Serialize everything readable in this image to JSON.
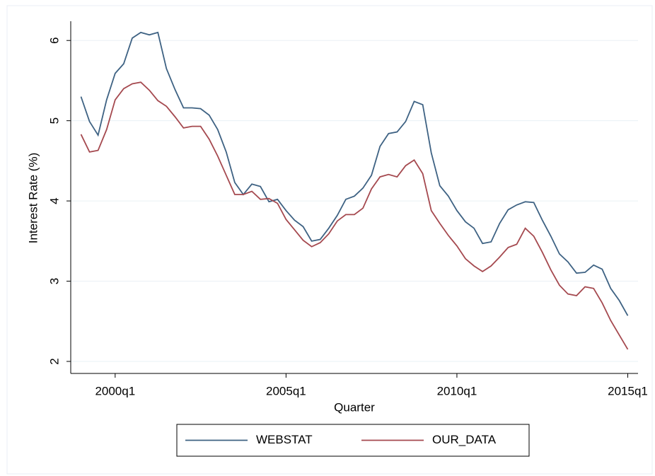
{
  "chart_data": {
    "type": "line",
    "x_label": "Quarter",
    "y_label": "Interest Rate (%)",
    "x": [
      156,
      157,
      158,
      159,
      160,
      161,
      162,
      163,
      164,
      165,
      166,
      167,
      168,
      169,
      170,
      171,
      172,
      173,
      174,
      175,
      176,
      177,
      178,
      179,
      180,
      181,
      182,
      183,
      184,
      185,
      186,
      187,
      188,
      189,
      190,
      191,
      192,
      193,
      194,
      195,
      196,
      197,
      198,
      199,
      200,
      201,
      202,
      203,
      204,
      205,
      206,
      207,
      208,
      209,
      210,
      211,
      212,
      213,
      214,
      215,
      216,
      217,
      218,
      219,
      220
    ],
    "series": [
      {
        "name": "WEBSTAT",
        "color": "#3e6283",
        "values": [
          5.3,
          4.99,
          4.82,
          5.26,
          5.59,
          5.71,
          6.03,
          6.1,
          6.07,
          6.1,
          5.65,
          5.39,
          5.16,
          5.16,
          5.15,
          5.07,
          4.89,
          4.61,
          4.23,
          4.08,
          4.21,
          4.18,
          3.99,
          4.02,
          3.88,
          3.76,
          3.68,
          3.5,
          3.52,
          3.66,
          3.82,
          4.02,
          4.06,
          4.16,
          4.32,
          4.68,
          4.84,
          4.86,
          4.99,
          5.24,
          5.2,
          4.6,
          4.19,
          4.06,
          3.88,
          3.74,
          3.66,
          3.47,
          3.49,
          3.72,
          3.89,
          3.95,
          3.99,
          3.98,
          3.76,
          3.56,
          3.34,
          3.24,
          3.1,
          3.11,
          3.2,
          3.15,
          2.91,
          2.76,
          2.57
        ]
      },
      {
        "name": "OUR_DATA",
        "color": "#a5494f",
        "values": [
          4.83,
          4.61,
          4.63,
          4.89,
          5.26,
          5.4,
          5.46,
          5.48,
          5.38,
          5.25,
          5.18,
          5.05,
          4.91,
          4.93,
          4.93,
          4.77,
          4.56,
          4.32,
          4.08,
          4.08,
          4.12,
          4.02,
          4.03,
          3.97,
          3.77,
          3.64,
          3.51,
          3.43,
          3.48,
          3.59,
          3.75,
          3.83,
          3.83,
          3.91,
          4.15,
          4.3,
          4.33,
          4.3,
          4.44,
          4.51,
          4.34,
          3.88,
          3.72,
          3.57,
          3.44,
          3.28,
          3.19,
          3.12,
          3.19,
          3.3,
          3.42,
          3.46,
          3.66,
          3.56,
          3.36,
          3.14,
          2.95,
          2.84,
          2.82,
          2.93,
          2.91,
          2.73,
          2.51,
          2.33,
          2.15
        ]
      }
    ],
    "xlim": [
      154.8,
      221.2
    ],
    "xticks": [
      {
        "value": 160,
        "label": "2000q1"
      },
      {
        "value": 180,
        "label": "2005q1"
      },
      {
        "value": 200,
        "label": "2010q1"
      },
      {
        "value": 220,
        "label": "2015q1"
      }
    ],
    "ylim": [
      1.85,
      6.24
    ],
    "yticks": [
      2,
      3,
      4,
      5,
      6
    ],
    "grid": true,
    "legend": "bottom"
  }
}
